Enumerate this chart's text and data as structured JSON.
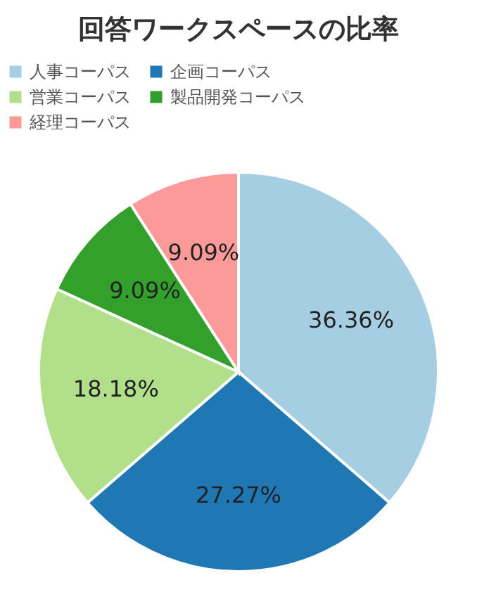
{
  "chart_data": {
    "type": "pie",
    "title": "回答ワークスペースの比率",
    "categories": [
      "人事コーパス",
      "企画コーパス",
      "営業コーパス",
      "製品開発コーパス",
      "経理コーパス"
    ],
    "values": [
      36.36,
      27.27,
      18.18,
      9.09,
      9.09
    ],
    "colors": [
      "#a6cee3",
      "#1f78b4",
      "#b2df8a",
      "#33a02c",
      "#fb9a99"
    ],
    "value_labels": [
      "36.36%",
      "27.27%",
      "18.18%",
      "9.09%",
      "9.09%"
    ],
    "legend": "top"
  }
}
